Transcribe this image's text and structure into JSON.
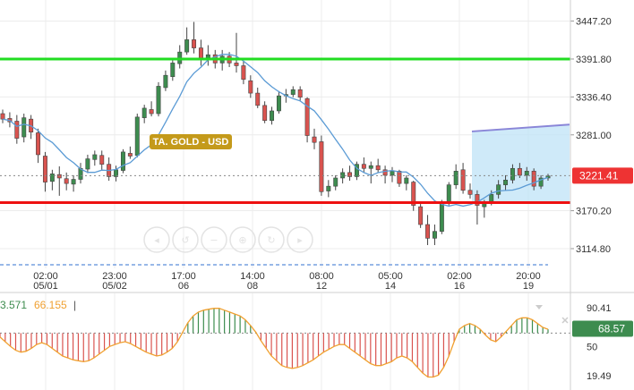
{
  "chart_data": [
    {
      "type": "candlestick",
      "title": "TA. GOLD - USD",
      "last_price": "3221.41",
      "price_ticks": [
        "3447.20",
        "3391.80",
        "3336.40",
        "3281.00",
        "3170.20",
        "3114.80"
      ],
      "ylim": [
        3086,
        3478
      ],
      "time_ticks": [
        {
          "time": "02:00",
          "date": "05/01"
        },
        {
          "time": "23:00",
          "date": "05/02"
        },
        {
          "time": "17:00",
          "date": "06"
        },
        {
          "time": "14:00",
          "date": "08"
        },
        {
          "time": "08:00",
          "date": "12"
        },
        {
          "time": "05:00",
          "date": "14"
        },
        {
          "time": "02:00",
          "date": "16"
        },
        {
          "time": "20:00",
          "date": "19"
        }
      ],
      "resistance_level": 3391.8,
      "support_level": 3182,
      "colors": {
        "up": "#3d8c4f",
        "down": "#d9534f",
        "ma": "#5b9bd5",
        "resistance": "#22dd22",
        "support": "#ee1111",
        "price_box": "#ee3333",
        "label_box": "#c49a1a"
      },
      "candles": [
        {
          "o": 3312,
          "h": 3318,
          "l": 3298,
          "c": 3304
        },
        {
          "o": 3305,
          "h": 3314,
          "l": 3292,
          "c": 3300
        },
        {
          "o": 3301,
          "h": 3310,
          "l": 3268,
          "c": 3276
        },
        {
          "o": 3278,
          "h": 3312,
          "l": 3270,
          "c": 3306
        },
        {
          "o": 3304,
          "h": 3310,
          "l": 3275,
          "c": 3285
        },
        {
          "o": 3284,
          "h": 3290,
          "l": 3240,
          "c": 3252
        },
        {
          "o": 3250,
          "h": 3256,
          "l": 3198,
          "c": 3212
        },
        {
          "o": 3213,
          "h": 3230,
          "l": 3200,
          "c": 3224
        },
        {
          "o": 3223,
          "h": 3235,
          "l": 3192,
          "c": 3218
        },
        {
          "o": 3217,
          "h": 3226,
          "l": 3200,
          "c": 3210
        },
        {
          "o": 3209,
          "h": 3222,
          "l": 3198,
          "c": 3216
        },
        {
          "o": 3216,
          "h": 3240,
          "l": 3210,
          "c": 3232
        },
        {
          "o": 3231,
          "h": 3252,
          "l": 3225,
          "c": 3246
        },
        {
          "o": 3245,
          "h": 3258,
          "l": 3236,
          "c": 3252
        },
        {
          "o": 3251,
          "h": 3258,
          "l": 3230,
          "c": 3238
        },
        {
          "o": 3238,
          "h": 3248,
          "l": 3214,
          "c": 3220
        },
        {
          "o": 3220,
          "h": 3236,
          "l": 3213,
          "c": 3230
        },
        {
          "o": 3229,
          "h": 3260,
          "l": 3225,
          "c": 3256
        },
        {
          "o": 3254,
          "h": 3264,
          "l": 3246,
          "c": 3250
        },
        {
          "o": 3251,
          "h": 3312,
          "l": 3248,
          "c": 3307
        },
        {
          "o": 3306,
          "h": 3325,
          "l": 3298,
          "c": 3320
        },
        {
          "o": 3318,
          "h": 3330,
          "l": 3308,
          "c": 3312
        },
        {
          "o": 3312,
          "h": 3358,
          "l": 3308,
          "c": 3352
        },
        {
          "o": 3350,
          "h": 3375,
          "l": 3345,
          "c": 3368
        },
        {
          "o": 3366,
          "h": 3392,
          "l": 3360,
          "c": 3386
        },
        {
          "o": 3385,
          "h": 3412,
          "l": 3378,
          "c": 3402
        },
        {
          "o": 3402,
          "h": 3438,
          "l": 3398,
          "c": 3420
        },
        {
          "o": 3420,
          "h": 3446,
          "l": 3400,
          "c": 3408
        },
        {
          "o": 3408,
          "h": 3420,
          "l": 3382,
          "c": 3392
        },
        {
          "o": 3392,
          "h": 3412,
          "l": 3382,
          "c": 3398
        },
        {
          "o": 3398,
          "h": 3405,
          "l": 3378,
          "c": 3386
        },
        {
          "o": 3386,
          "h": 3405,
          "l": 3375,
          "c": 3396
        },
        {
          "o": 3396,
          "h": 3402,
          "l": 3380,
          "c": 3386
        },
        {
          "o": 3386,
          "h": 3430,
          "l": 3372,
          "c": 3382
        },
        {
          "o": 3382,
          "h": 3388,
          "l": 3355,
          "c": 3362
        },
        {
          "o": 3360,
          "h": 3368,
          "l": 3335,
          "c": 3342
        },
        {
          "o": 3342,
          "h": 3350,
          "l": 3320,
          "c": 3324
        },
        {
          "o": 3324,
          "h": 3330,
          "l": 3298,
          "c": 3302
        },
        {
          "o": 3302,
          "h": 3322,
          "l": 3296,
          "c": 3316
        },
        {
          "o": 3316,
          "h": 3345,
          "l": 3312,
          "c": 3338
        },
        {
          "o": 3338,
          "h": 3348,
          "l": 3328,
          "c": 3340
        },
        {
          "o": 3340,
          "h": 3352,
          "l": 3336,
          "c": 3347
        },
        {
          "o": 3347,
          "h": 3352,
          "l": 3330,
          "c": 3336
        },
        {
          "o": 3334,
          "h": 3336,
          "l": 3270,
          "c": 3280
        },
        {
          "o": 3278,
          "h": 3290,
          "l": 3260,
          "c": 3270
        },
        {
          "o": 3271,
          "h": 3280,
          "l": 3192,
          "c": 3198
        },
        {
          "o": 3199,
          "h": 3215,
          "l": 3190,
          "c": 3206
        },
        {
          "o": 3206,
          "h": 3222,
          "l": 3200,
          "c": 3218
        },
        {
          "o": 3218,
          "h": 3232,
          "l": 3210,
          "c": 3226
        },
        {
          "o": 3226,
          "h": 3236,
          "l": 3214,
          "c": 3220
        },
        {
          "o": 3220,
          "h": 3242,
          "l": 3215,
          "c": 3238
        },
        {
          "o": 3238,
          "h": 3248,
          "l": 3226,
          "c": 3232
        },
        {
          "o": 3232,
          "h": 3242,
          "l": 3210,
          "c": 3236
        },
        {
          "o": 3236,
          "h": 3246,
          "l": 3226,
          "c": 3230
        },
        {
          "o": 3230,
          "h": 3236,
          "l": 3210,
          "c": 3222
        },
        {
          "o": 3222,
          "h": 3234,
          "l": 3212,
          "c": 3228
        },
        {
          "o": 3228,
          "h": 3230,
          "l": 3205,
          "c": 3210
        },
        {
          "o": 3210,
          "h": 3222,
          "l": 3200,
          "c": 3218
        },
        {
          "o": 3212,
          "h": 3214,
          "l": 3170,
          "c": 3178
        },
        {
          "o": 3176,
          "h": 3180,
          "l": 3145,
          "c": 3150
        },
        {
          "o": 3150,
          "h": 3164,
          "l": 3120,
          "c": 3130
        },
        {
          "o": 3130,
          "h": 3150,
          "l": 3120,
          "c": 3140
        },
        {
          "o": 3140,
          "h": 3186,
          "l": 3136,
          "c": 3182
        },
        {
          "o": 3182,
          "h": 3212,
          "l": 3178,
          "c": 3208
        },
        {
          "o": 3208,
          "h": 3238,
          "l": 3202,
          "c": 3228
        },
        {
          "o": 3230,
          "h": 3240,
          "l": 3195,
          "c": 3200
        },
        {
          "o": 3200,
          "h": 3210,
          "l": 3188,
          "c": 3194
        },
        {
          "o": 3194,
          "h": 3200,
          "l": 3150,
          "c": 3178
        },
        {
          "o": 3176,
          "h": 3186,
          "l": 3160,
          "c": 3182
        },
        {
          "o": 3182,
          "h": 3200,
          "l": 3178,
          "c": 3194
        },
        {
          "o": 3194,
          "h": 3215,
          "l": 3188,
          "c": 3208
        },
        {
          "o": 3208,
          "h": 3222,
          "l": 3200,
          "c": 3215
        },
        {
          "o": 3215,
          "h": 3238,
          "l": 3210,
          "c": 3232
        },
        {
          "o": 3232,
          "h": 3240,
          "l": 3218,
          "c": 3222
        },
        {
          "o": 3222,
          "h": 3234,
          "l": 3214,
          "c": 3228
        },
        {
          "o": 3228,
          "h": 3232,
          "l": 3200,
          "c": 3206
        },
        {
          "o": 3206,
          "h": 3222,
          "l": 3202,
          "c": 3218
        },
        {
          "o": 3218,
          "h": 3224,
          "l": 3214,
          "c": 3221
        }
      ]
    },
    {
      "type": "oscillator",
      "value_a": "3.571",
      "value_b": "66.155",
      "separator": "|",
      "current_value": "68.57",
      "level_ticks": [
        "90.41",
        "50",
        "19.49"
      ],
      "ylim": [
        10,
        100
      ],
      "mid_level": 64,
      "colors": {
        "up": "#3d8c4f",
        "down": "#d9534f",
        "line": "#f0a030",
        "value_box": "#3d8c4f"
      },
      "line": [
        60,
        55,
        50,
        46,
        44,
        45,
        48,
        52,
        54,
        52,
        48,
        44,
        40,
        38,
        36,
        35,
        34,
        35,
        38,
        42,
        46,
        50,
        52,
        54,
        55,
        53,
        50,
        47,
        44,
        42,
        40,
        41,
        44,
        48,
        55,
        65,
        75,
        82,
        86,
        88,
        89,
        90,
        90,
        88,
        86,
        84,
        82,
        78,
        72,
        65,
        56,
        48,
        40,
        35,
        30,
        28,
        27,
        28,
        30,
        33,
        36,
        40,
        44,
        47,
        50,
        52,
        52,
        48,
        44,
        40,
        36,
        32,
        30,
        30,
        32,
        34,
        38,
        40,
        38,
        34,
        28,
        22,
        18,
        18,
        20,
        28,
        40,
        55,
        68,
        72,
        74,
        72,
        68,
        62,
        57,
        55,
        60,
        66,
        72,
        78,
        80,
        80,
        78,
        74,
        70,
        68
      ],
      "hist_series": "line"
    }
  ]
}
